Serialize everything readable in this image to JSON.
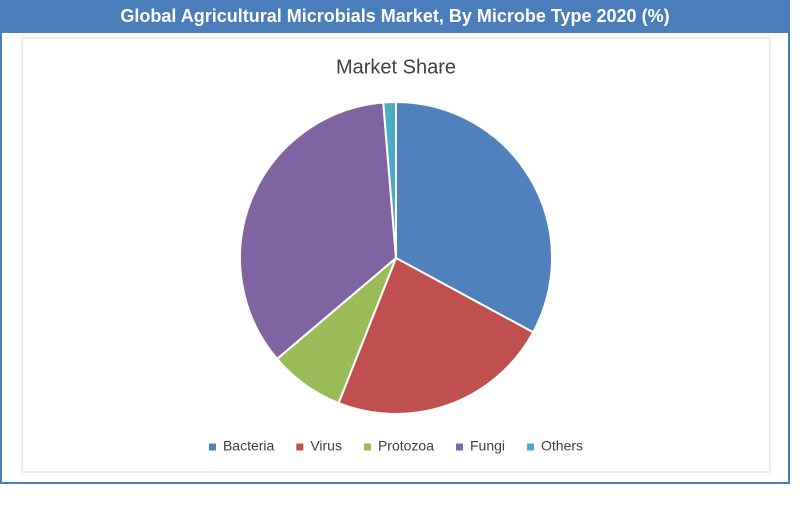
{
  "header": {
    "title": "Global Agricultural Microbials Market, By Microbe Type 2020 (%)"
  },
  "chart_data": {
    "type": "pie",
    "title": "Market Share",
    "categories": [
      "Bacteria",
      "Virus",
      "Protozoa",
      "Fungi",
      "Others"
    ],
    "values": [
      32.9,
      23.1,
      7.8,
      34.9,
      1.3
    ],
    "colors": [
      "#4f81bd",
      "#c0504d",
      "#9bbb59",
      "#8064a2",
      "#4bacc6"
    ],
    "legend": "bottom"
  }
}
